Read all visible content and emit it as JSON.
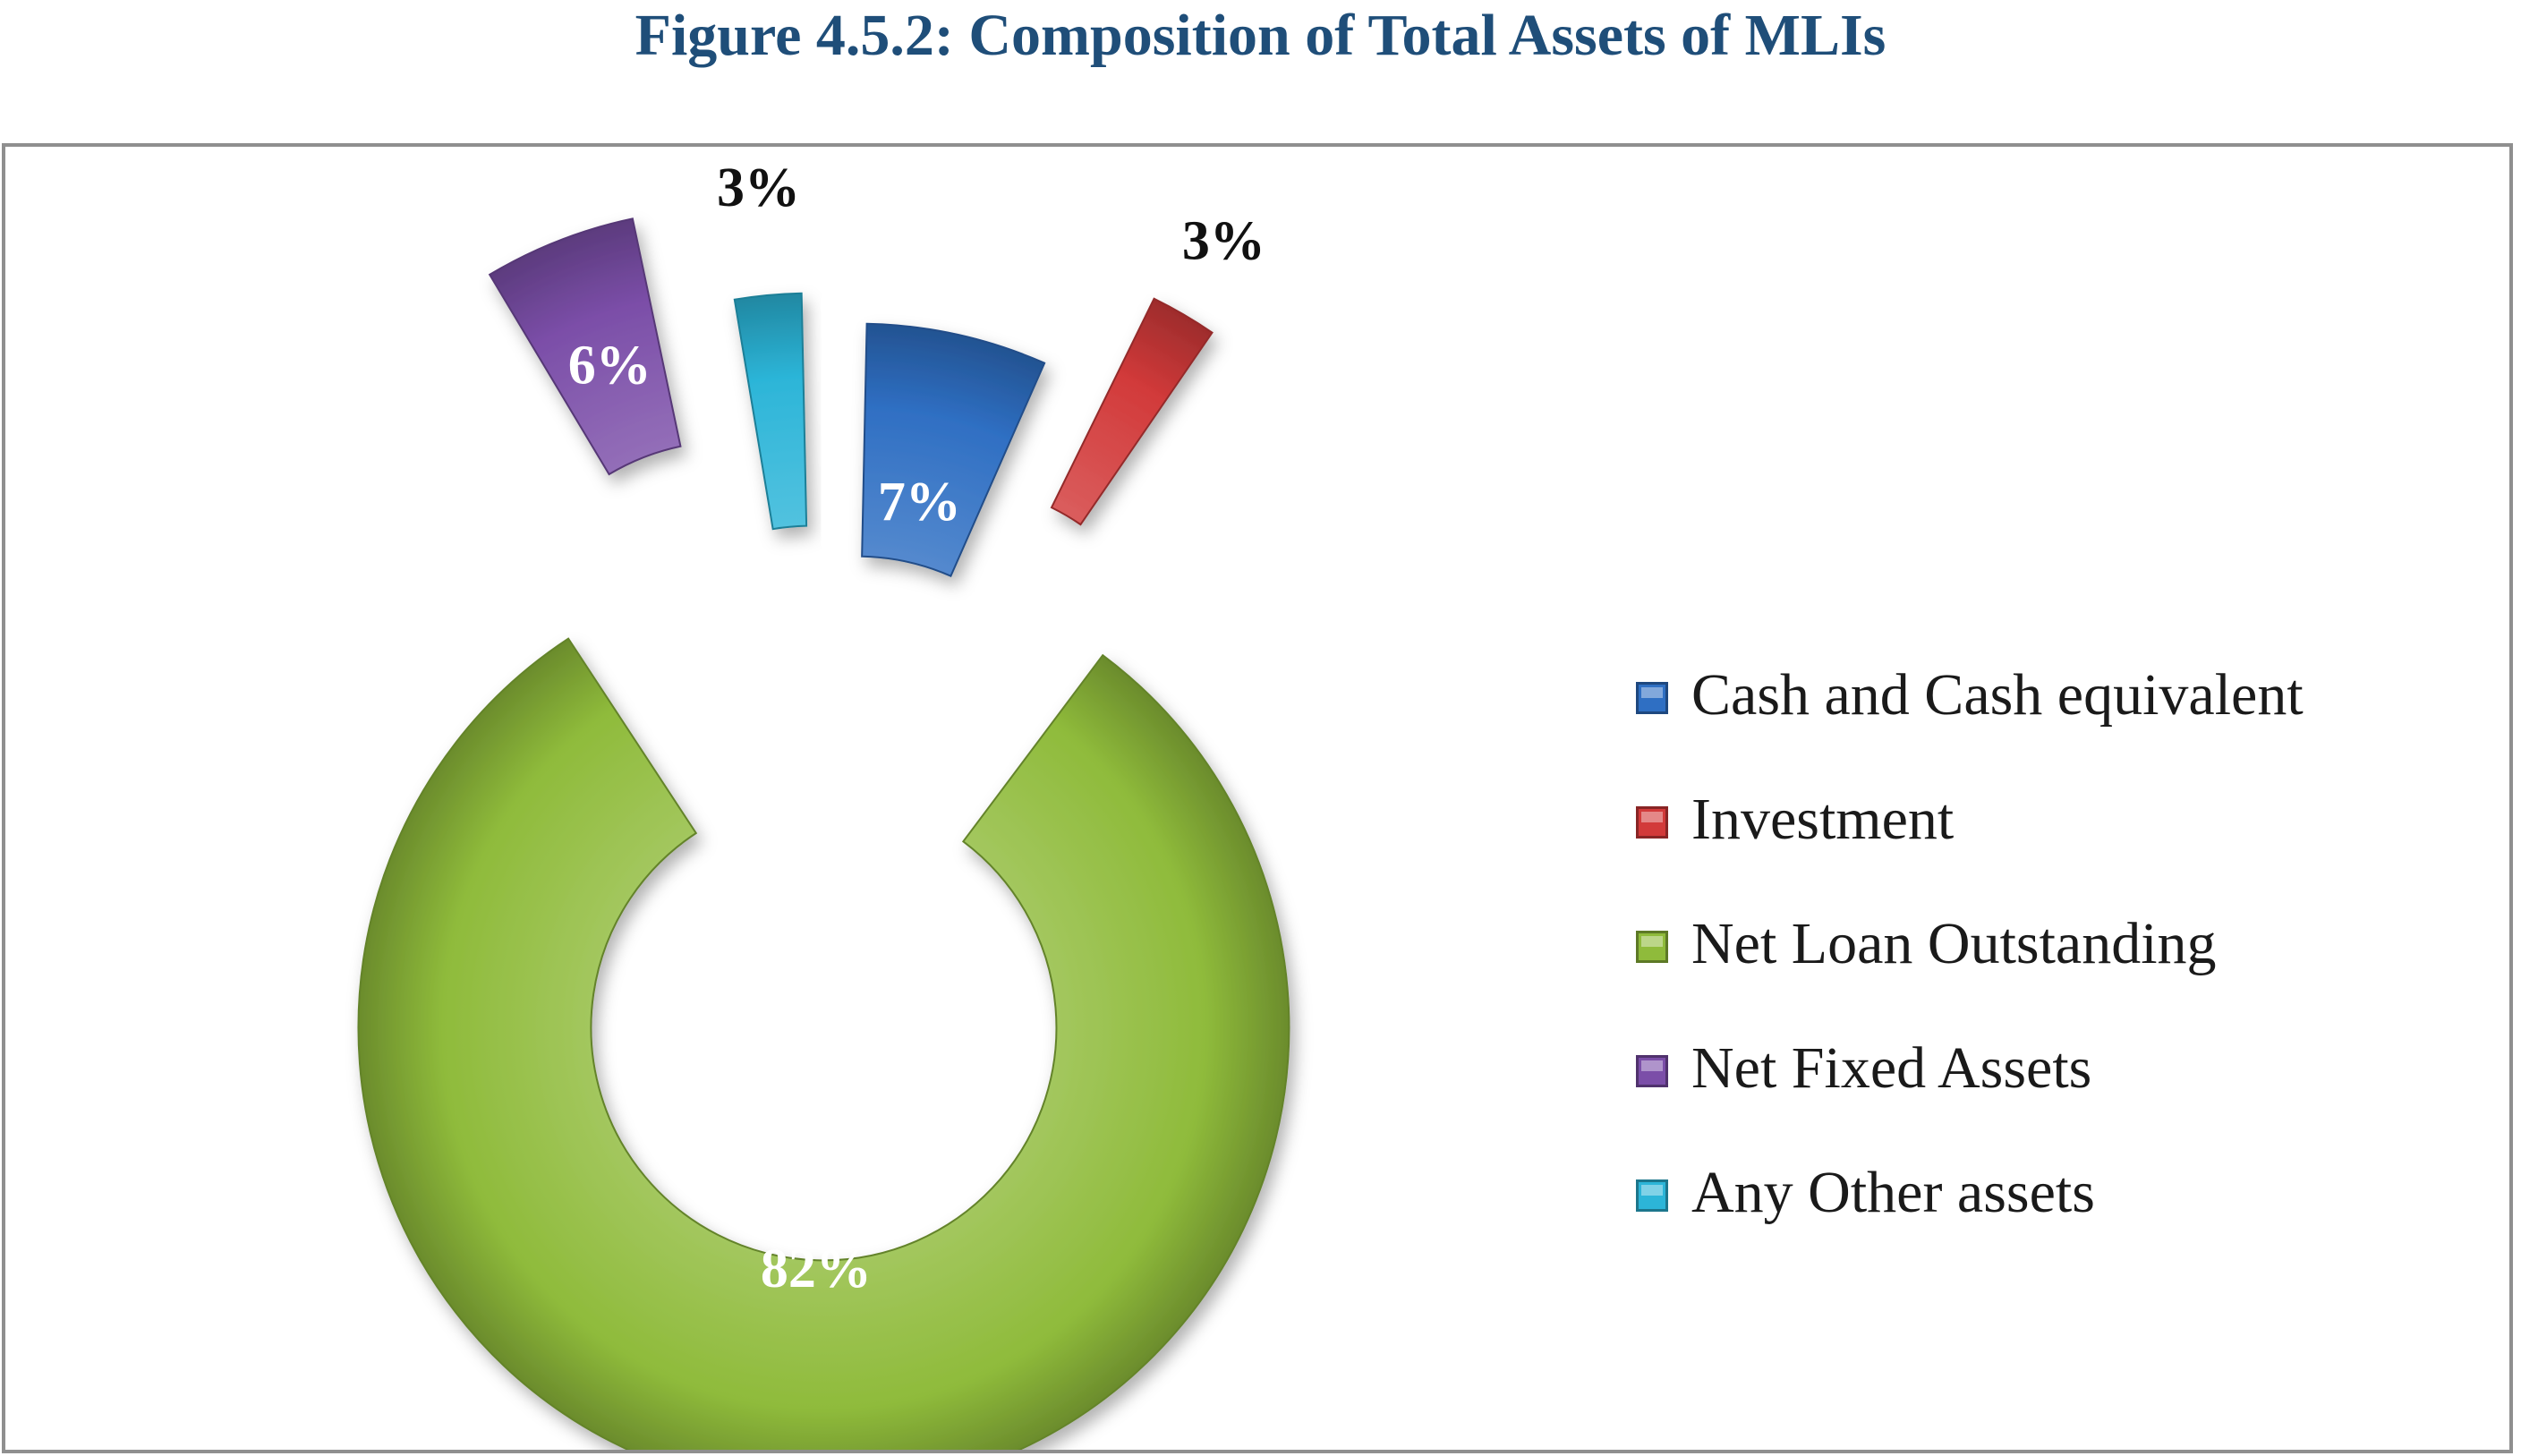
{
  "figure": {
    "title": "Figure 4.5.2: Composition of Total Assets of MLIs"
  },
  "chart_data": {
    "type": "pie",
    "title": "Figure 4.5.2: Composition of Total Assets of MLIs",
    "style": "exploded doughnut",
    "legend_position": "right",
    "categories": [
      "Cash and Cash equivalent",
      "Investment",
      "Net Loan Outstanding",
      "Net Fixed Assets",
      "Any Other assets"
    ],
    "values": [
      7,
      3,
      82,
      6,
      3
    ],
    "labels": [
      "7%",
      "3%",
      "82%",
      "6%",
      "3%"
    ],
    "colors": [
      "#2f6fc3",
      "#d23a3a",
      "#8fbb3b",
      "#7b4ea8",
      "#2cb5d8"
    ],
    "label_colors": [
      "#ffffff",
      "#111111",
      "#ffffff",
      "#ffffff",
      "#111111"
    ]
  }
}
